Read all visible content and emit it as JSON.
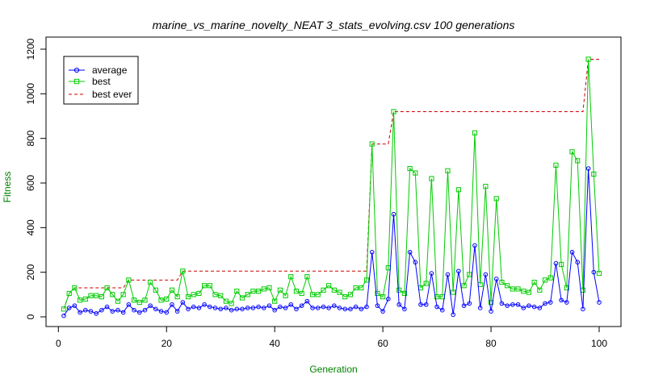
{
  "chart_data": {
    "type": "line",
    "title": "marine_vs_marine_novelty_NEAT 3_stats_evolving.csv 100 generations",
    "xlabel": "Generation",
    "ylabel": "Fitness",
    "xlim": [
      1,
      100
    ],
    "ylim": [
      0,
      1200
    ],
    "x_ticks": [
      0,
      20,
      40,
      60,
      80,
      100
    ],
    "y_ticks": [
      0,
      200,
      400,
      600,
      800,
      1000,
      1200
    ],
    "grid": false,
    "legend_position": "top-left",
    "colors": {
      "average": "#0000ff",
      "best": "#00cc00",
      "best_ever": "#cc0000",
      "axis_label": "#008000"
    },
    "x": [
      1,
      2,
      3,
      4,
      5,
      6,
      7,
      8,
      9,
      10,
      11,
      12,
      13,
      14,
      15,
      16,
      17,
      18,
      19,
      20,
      21,
      22,
      23,
      24,
      25,
      26,
      27,
      28,
      29,
      30,
      31,
      32,
      33,
      34,
      35,
      36,
      37,
      38,
      39,
      40,
      41,
      42,
      43,
      44,
      45,
      46,
      47,
      48,
      49,
      50,
      51,
      52,
      53,
      54,
      55,
      56,
      57,
      58,
      59,
      60,
      61,
      62,
      63,
      64,
      65,
      66,
      67,
      68,
      69,
      70,
      71,
      72,
      73,
      74,
      75,
      76,
      77,
      78,
      79,
      80,
      81,
      82,
      83,
      84,
      85,
      86,
      87,
      88,
      89,
      90,
      91,
      92,
      93,
      94,
      95,
      96,
      97,
      98,
      99,
      100
    ],
    "series": [
      {
        "name": "average",
        "marker": "circle",
        "values": [
          5,
          40,
          50,
          20,
          30,
          25,
          15,
          30,
          45,
          25,
          30,
          20,
          55,
          30,
          20,
          30,
          50,
          35,
          25,
          20,
          55,
          25,
          65,
          35,
          45,
          40,
          55,
          45,
          40,
          35,
          40,
          30,
          35,
          35,
          40,
          40,
          45,
          40,
          50,
          30,
          45,
          40,
          55,
          35,
          50,
          70,
          40,
          40,
          45,
          40,
          50,
          40,
          35,
          35,
          45,
          35,
          45,
          290,
          50,
          25,
          80,
          460,
          55,
          35,
          290,
          245,
          55,
          55,
          195,
          45,
          30,
          190,
          10,
          205,
          50,
          60,
          320,
          40,
          190,
          25,
          170,
          60,
          50,
          55,
          55,
          40,
          50,
          45,
          40,
          60,
          65,
          240,
          75,
          65,
          290,
          245,
          35,
          665,
          200,
          65
        ]
      },
      {
        "name": "best",
        "marker": "square",
        "values": [
          35,
          105,
          130,
          75,
          80,
          95,
          95,
          90,
          130,
          100,
          70,
          100,
          165,
          75,
          65,
          75,
          155,
          120,
          75,
          80,
          120,
          90,
          205,
          90,
          100,
          105,
          140,
          140,
          100,
          95,
          70,
          60,
          115,
          85,
          100,
          115,
          115,
          125,
          130,
          70,
          120,
          95,
          180,
          115,
          105,
          180,
          100,
          100,
          120,
          140,
          120,
          110,
          90,
          100,
          130,
          130,
          165,
          775,
          105,
          90,
          220,
          920,
          120,
          105,
          665,
          645,
          130,
          150,
          620,
          90,
          90,
          655,
          110,
          570,
          140,
          190,
          825,
          145,
          585,
          65,
          530,
          155,
          140,
          125,
          125,
          115,
          110,
          155,
          120,
          165,
          175,
          680,
          235,
          130,
          740,
          700,
          120,
          1155,
          640,
          195
        ]
      },
      {
        "name": "best ever",
        "dashed": true,
        "values": [
          35,
          105,
          130,
          130,
          130,
          130,
          130,
          130,
          130,
          130,
          130,
          130,
          165,
          165,
          165,
          165,
          165,
          165,
          165,
          165,
          165,
          165,
          205,
          205,
          205,
          205,
          205,
          205,
          205,
          205,
          205,
          205,
          205,
          205,
          205,
          205,
          205,
          205,
          205,
          205,
          205,
          205,
          205,
          205,
          205,
          205,
          205,
          205,
          205,
          205,
          205,
          205,
          205,
          205,
          205,
          205,
          205,
          775,
          775,
          775,
          775,
          920,
          920,
          920,
          920,
          920,
          920,
          920,
          920,
          920,
          920,
          920,
          920,
          920,
          920,
          920,
          920,
          920,
          920,
          920,
          920,
          920,
          920,
          920,
          920,
          920,
          920,
          920,
          920,
          920,
          920,
          920,
          920,
          920,
          920,
          920,
          920,
          1155,
          1155,
          1155
        ]
      }
    ]
  }
}
